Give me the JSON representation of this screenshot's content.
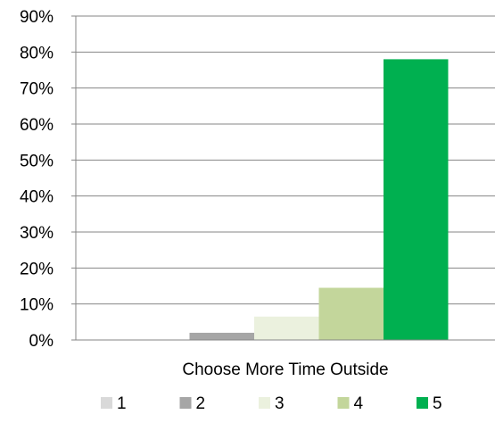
{
  "chart_data": {
    "type": "bar",
    "categories": [
      "Choose More Time Outside"
    ],
    "series": [
      {
        "name": "1",
        "values": [
          0
        ],
        "color": "#d9d9d9"
      },
      {
        "name": "2",
        "values": [
          2
        ],
        "color": "#a6a6a6"
      },
      {
        "name": "3",
        "values": [
          6.5
        ],
        "color": "#ebf1de"
      },
      {
        "name": "4",
        "values": [
          14.5
        ],
        "color": "#c3d69b"
      },
      {
        "name": "5",
        "values": [
          78
        ],
        "color": "#00b050"
      }
    ],
    "ylim": [
      0,
      90
    ],
    "yticks": [
      "0%",
      "10%",
      "20%",
      "30%",
      "40%",
      "50%",
      "60%",
      "70%",
      "80%",
      "90%"
    ],
    "grid": true,
    "legend": "bottom"
  }
}
